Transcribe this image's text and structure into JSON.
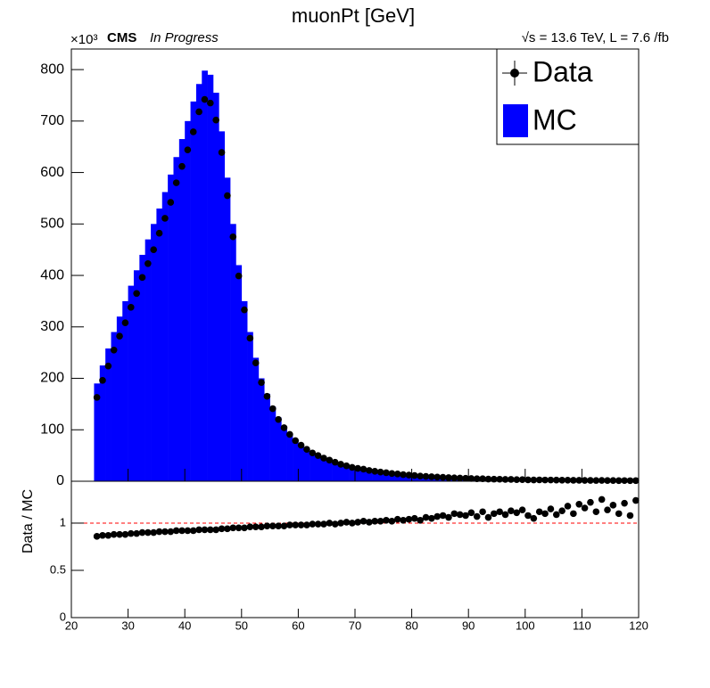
{
  "chart_data": [
    {
      "type": "histogram",
      "title": "muonPt [GeV]",
      "y_multiplier": "×10³",
      "experiment": "CMS",
      "status": "In Progress",
      "lumi_label": "√s = 13.6 TeV, L = 7.6 /fb",
      "bins": [
        24,
        25,
        26,
        27,
        28,
        29,
        30,
        31,
        32,
        33,
        34,
        35,
        36,
        37,
        38,
        39,
        40,
        41,
        42,
        43,
        44,
        45,
        46,
        47,
        48,
        49,
        50,
        51,
        52,
        53,
        54,
        55,
        56,
        57,
        58,
        59,
        60,
        61,
        62,
        63,
        64,
        65,
        66,
        67,
        68,
        69,
        70,
        71,
        72,
        73,
        74,
        75,
        76,
        77,
        78,
        79,
        80,
        81,
        82,
        83,
        84,
        85,
        86,
        87,
        88,
        89,
        90,
        91,
        92,
        93,
        94,
        95,
        96,
        97,
        98,
        99,
        100,
        101,
        102,
        103,
        104,
        105,
        106,
        107,
        108,
        109,
        110,
        111,
        112,
        113,
        114,
        115,
        116,
        117,
        118,
        119,
        120
      ],
      "series": [
        {
          "name": "Data",
          "color": "#000000",
          "values": [
            163,
            196,
            224,
            255,
            282,
            308,
            338,
            365,
            396,
            423,
            450,
            482,
            511,
            542,
            580,
            612,
            644,
            679,
            718,
            742,
            735,
            702,
            639,
            555,
            475,
            399,
            333,
            278,
            230,
            192,
            165,
            141,
            120,
            104,
            91,
            79,
            70,
            62,
            55,
            50,
            45,
            41,
            37,
            33,
            30,
            27,
            25,
            23.5,
            21,
            19.4,
            17.9,
            16.5,
            15.1,
            14.1,
            12.9,
            12.0,
            11.1,
            10.1,
            9.5,
            8.7,
            8.2,
            7.7,
            7.0,
            6.7,
            6.2,
            5.7,
            5.4,
            4.9,
            4.8,
            4.2,
            4.1,
            3.9,
            3.6,
            3.5,
            3.2,
            3.1,
            2.7,
            2.5,
            2.6,
            2.4,
            2.4,
            2.2,
            2.1,
            2.1,
            1.9,
            1.9,
            1.7,
            1.7,
            1.5,
            1.6,
            1.4,
            1.4,
            1.2,
            1.3,
            1.1,
            1.2
          ]
        },
        {
          "name": "MC",
          "color": "#0000ff",
          "values": [
            190,
            225,
            258,
            290,
            320,
            350,
            380,
            410,
            440,
            470,
            500,
            530,
            562,
            596,
            630,
            665,
            700,
            738,
            772,
            798,
            790,
            755,
            680,
            590,
            500,
            420,
            350,
            290,
            240,
            200,
            170,
            145,
            124,
            107,
            93,
            81,
            71,
            63,
            56,
            50,
            45,
            41,
            37,
            33,
            30,
            27,
            25,
            23,
            21,
            19,
            17.5,
            16,
            14.8,
            13.6,
            12.5,
            11.5,
            10.6,
            9.8,
            9.0,
            8.3,
            7.7,
            7.1,
            6.6,
            6.1,
            5.7,
            5.3,
            4.9,
            4.6,
            4.3,
            4.0,
            3.7,
            3.5,
            3.3,
            3.1,
            2.9,
            2.7,
            2.5,
            2.4,
            2.3,
            2.2,
            2.1,
            2.0,
            1.9,
            1.8,
            1.7,
            1.6,
            1.5,
            1.4,
            1.3,
            1.25,
            1.2,
            1.15,
            1.1,
            1.05,
            1.0,
            0.95
          ]
        }
      ],
      "ylim": [
        0,
        840
      ],
      "yticks": [
        0,
        100,
        200,
        300,
        400,
        500,
        600,
        700,
        800
      ],
      "legend": "upper right"
    },
    {
      "type": "ratio",
      "ylabel": "Data / MC",
      "color": "#000000",
      "values": [
        0.86,
        0.87,
        0.87,
        0.88,
        0.88,
        0.88,
        0.89,
        0.89,
        0.9,
        0.9,
        0.9,
        0.91,
        0.91,
        0.91,
        0.92,
        0.92,
        0.92,
        0.92,
        0.93,
        0.93,
        0.93,
        0.93,
        0.94,
        0.94,
        0.95,
        0.95,
        0.95,
        0.96,
        0.96,
        0.96,
        0.97,
        0.97,
        0.97,
        0.97,
        0.98,
        0.98,
        0.98,
        0.98,
        0.99,
        0.99,
        0.99,
        1.0,
        0.99,
        1.0,
        1.01,
        1.0,
        1.01,
        1.02,
        1.01,
        1.02,
        1.02,
        1.03,
        1.02,
        1.04,
        1.03,
        1.04,
        1.05,
        1.03,
        1.06,
        1.05,
        1.07,
        1.08,
        1.06,
        1.1,
        1.09,
        1.08,
        1.11,
        1.07,
        1.12,
        1.06,
        1.1,
        1.12,
        1.09,
        1.13,
        1.11,
        1.14,
        1.08,
        1.05,
        1.12,
        1.1,
        1.15,
        1.09,
        1.13,
        1.18,
        1.1,
        1.2,
        1.16,
        1.22,
        1.12,
        1.25,
        1.14,
        1.19,
        1.1,
        1.21,
        1.08,
        1.24
      ],
      "reference_line": 1,
      "reference_color": "#ff0000",
      "xlim": [
        20,
        120
      ],
      "xticks": [
        20,
        30,
        40,
        50,
        60,
        70,
        80,
        90,
        100,
        110,
        120
      ],
      "ylim": [
        0,
        1.443
      ],
      "yticks": [
        0,
        0.5,
        1
      ]
    }
  ]
}
